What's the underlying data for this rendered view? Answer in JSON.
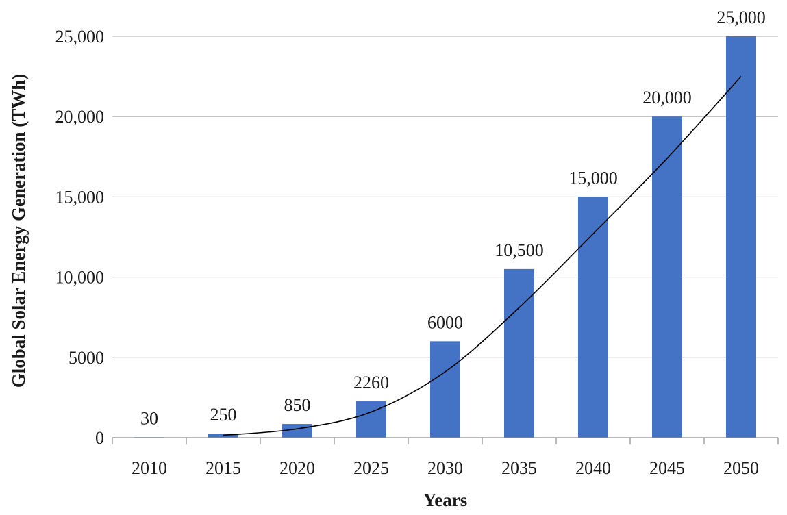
{
  "chart_data": {
    "type": "bar",
    "title": "",
    "xlabel": "Years",
    "ylabel": "Global Solar Energy Generation (TWh)",
    "categories": [
      "2010",
      "2015",
      "2020",
      "2025",
      "2030",
      "2035",
      "2040",
      "2045",
      "2050"
    ],
    "values": [
      30,
      250,
      850,
      2260,
      6000,
      10500,
      15000,
      20000,
      25000
    ],
    "data_labels": [
      "30",
      "250",
      "850",
      "2260",
      "6000",
      "10,500",
      "15,000",
      "20,000",
      "25,000"
    ],
    "ylim": [
      0,
      25000
    ],
    "yticks": [
      0,
      5000,
      10000,
      15000,
      20000,
      25000
    ],
    "ytick_labels": [
      "0",
      "5000",
      "10,000",
      "15,000",
      "20,000",
      "25,000"
    ],
    "grid": true,
    "legend": "none",
    "bar_color": "#4472c4",
    "trendline": {
      "type": "polynomial",
      "color": "#000000",
      "x": [
        "2015",
        "2020",
        "2025",
        "2030",
        "2035",
        "2040",
        "2045",
        "2050"
      ],
      "values": [
        150,
        550,
        1600,
        4100,
        8100,
        12700,
        17400,
        22500
      ]
    }
  }
}
